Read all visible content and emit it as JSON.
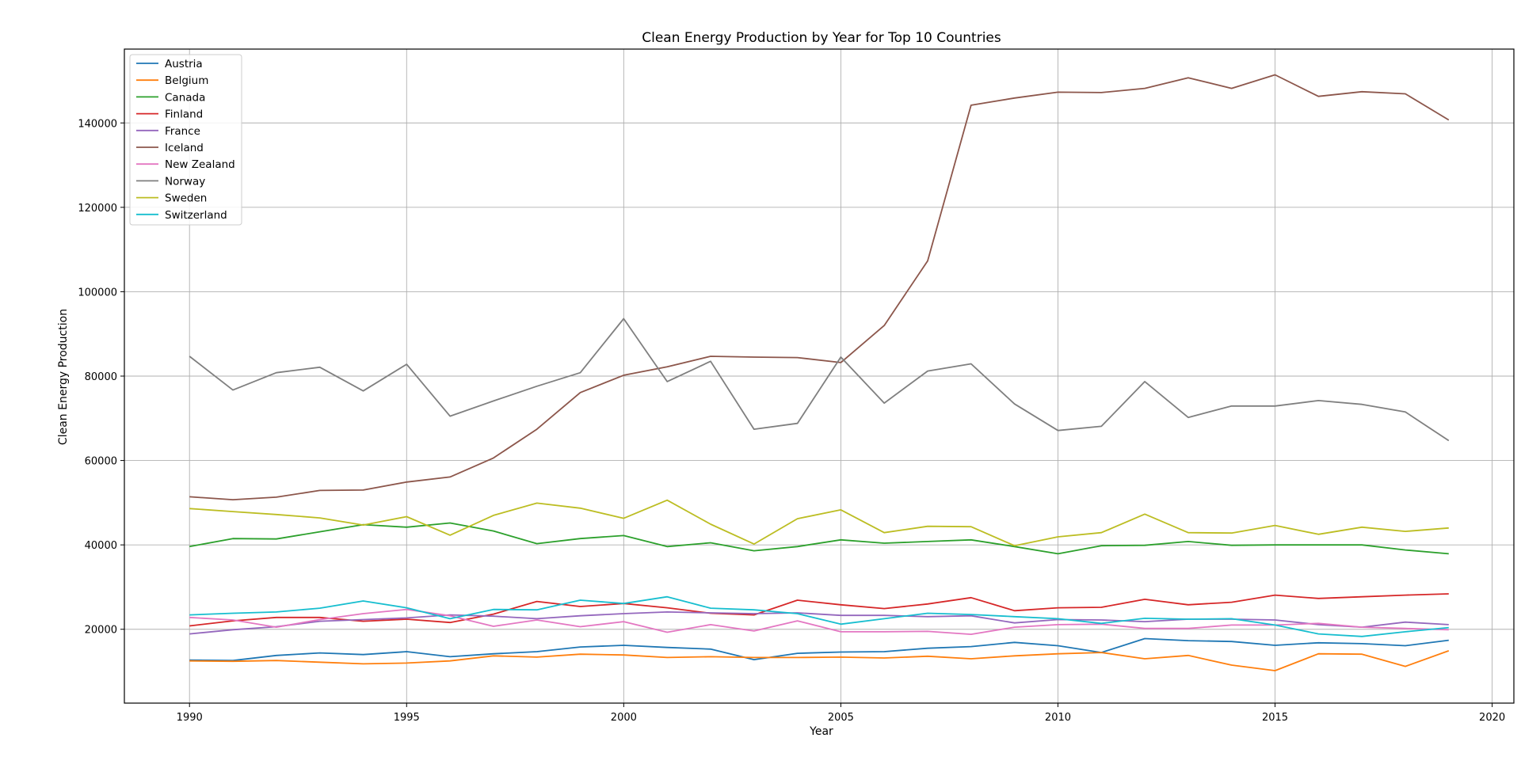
{
  "chart_data": {
    "type": "line",
    "title": "Clean Energy Production by Year for Top 10 Countries",
    "xlabel": "Year",
    "ylabel": "Clean Energy Production",
    "xlim": [
      1988.5,
      2020.5
    ],
    "ylim": [
      2500,
      157500
    ],
    "xticks": [
      1990,
      1995,
      2000,
      2005,
      2010,
      2015,
      2020
    ],
    "yticks": [
      20000,
      40000,
      60000,
      80000,
      100000,
      120000,
      140000
    ],
    "grid": true,
    "legend_position": "top-left",
    "x": [
      1990,
      1991,
      1992,
      1993,
      1994,
      1995,
      1996,
      1997,
      1998,
      1999,
      2000,
      2001,
      2002,
      2003,
      2004,
      2005,
      2006,
      2007,
      2008,
      2009,
      2010,
      2011,
      2012,
      2013,
      2014,
      2015,
      2016,
      2017,
      2018,
      2019
    ],
    "series": [
      {
        "name": "Austria",
        "color": "#1f77b4",
        "values": [
          12700,
          12600,
          13800,
          14400,
          14000,
          14700,
          13500,
          14200,
          14700,
          15800,
          16200,
          15700,
          15300,
          12800,
          14300,
          14600,
          14700,
          15500,
          15900,
          16900,
          16100,
          14500,
          17800,
          17300,
          17100,
          16200,
          16800,
          16600,
          16100,
          17400
        ]
      },
      {
        "name": "Belgium",
        "color": "#ff7f0e",
        "values": [
          12500,
          12400,
          12600,
          12200,
          11800,
          12000,
          12500,
          13700,
          13400,
          14100,
          13900,
          13300,
          13500,
          13300,
          13300,
          13400,
          13200,
          13600,
          13000,
          13700,
          14200,
          14500,
          13000,
          13800,
          11500,
          10200,
          14200,
          14100,
          11200,
          14900
        ]
      },
      {
        "name": "Canada",
        "color": "#2ca02c",
        "values": [
          39600,
          41500,
          41400,
          43100,
          44800,
          44200,
          45200,
          43300,
          40300,
          41500,
          42200,
          39600,
          40500,
          38600,
          39600,
          41200,
          40400,
          40800,
          41200,
          39600,
          37900,
          39800,
          39900,
          40800,
          39900,
          40000,
          40000,
          40000,
          38800,
          37900
        ]
      },
      {
        "name": "Finland",
        "color": "#d62728",
        "values": [
          20800,
          22000,
          22800,
          22800,
          21900,
          22400,
          21600,
          23600,
          26600,
          25400,
          26100,
          25100,
          23800,
          23400,
          26900,
          25800,
          24900,
          26000,
          27500,
          24400,
          25100,
          25200,
          27100,
          25800,
          26400,
          28100,
          27300,
          27700,
          28100,
          28400
        ]
      },
      {
        "name": "France",
        "color": "#9467bd",
        "values": [
          18900,
          19900,
          20600,
          21900,
          22300,
          22700,
          23400,
          23100,
          22500,
          23200,
          23700,
          24100,
          23900,
          23700,
          23900,
          23300,
          23300,
          23000,
          23200,
          21500,
          22300,
          22200,
          21800,
          22400,
          22400,
          22200,
          21100,
          20500,
          21700,
          21100
        ]
      },
      {
        "name": "Iceland",
        "color": "#8c564b",
        "values": [
          51400,
          50700,
          51300,
          52900,
          53000,
          54900,
          56100,
          60600,
          67400,
          76100,
          80200,
          82200,
          84700,
          84500,
          84400,
          83200,
          92000,
          107300,
          144200,
          145900,
          147300,
          147200,
          148200,
          150700,
          148200,
          151400,
          146300,
          147400,
          146900,
          140700
        ]
      },
      {
        "name": "New Zealand",
        "color": "#e377c2",
        "values": [
          22800,
          22200,
          20500,
          22300,
          23700,
          24700,
          23200,
          20700,
          22200,
          20600,
          21800,
          19300,
          21100,
          19600,
          22000,
          19400,
          19400,
          19500,
          18800,
          20500,
          21100,
          21200,
          20200,
          20200,
          21000,
          21000,
          21400,
          20500,
          20200,
          19900
        ]
      },
      {
        "name": "Norway",
        "color": "#7f7f7f",
        "values": [
          84700,
          76700,
          80800,
          82100,
          76500,
          82800,
          70500,
          74100,
          77600,
          80800,
          93600,
          78700,
          83500,
          67400,
          68800,
          84500,
          73600,
          81200,
          82900,
          73400,
          67100,
          68100,
          78700,
          70200,
          72900,
          72900,
          74200,
          73300,
          71500,
          64700
        ]
      },
      {
        "name": "Sweden",
        "color": "#bcbd22",
        "values": [
          48600,
          47900,
          47200,
          46400,
          44700,
          46700,
          42300,
          47000,
          49900,
          48700,
          46300,
          50600,
          44900,
          40200,
          46200,
          48300,
          42900,
          44400,
          44300,
          39800,
          41900,
          42900,
          47300,
          42900,
          42800,
          44600,
          42500,
          44200,
          43200,
          44000
        ]
      },
      {
        "name": "Switzerland",
        "color": "#17becf",
        "values": [
          23400,
          23800,
          24100,
          25000,
          26700,
          25100,
          22500,
          24700,
          24600,
          26900,
          26100,
          27700,
          25000,
          24600,
          23700,
          21200,
          22500,
          23800,
          23500,
          23000,
          22500,
          21400,
          22600,
          22400,
          22500,
          21000,
          18900,
          18300,
          19400,
          20400
        ]
      }
    ]
  }
}
